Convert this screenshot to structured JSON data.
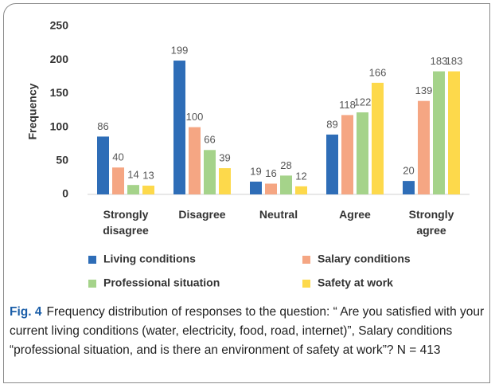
{
  "chart_data": {
    "type": "bar",
    "ylabel": "Frequency",
    "categories": [
      "Strongly disagree",
      "Disagree",
      "Neutral",
      "Agree",
      "Strongly agree"
    ],
    "series": [
      {
        "name": "Living conditions",
        "color": "#2e6db7",
        "values": [
          86,
          199,
          19,
          89,
          20
        ]
      },
      {
        "name": "Salary conditions",
        "color": "#f5a683",
        "values": [
          40,
          100,
          16,
          118,
          139
        ]
      },
      {
        "name": "Professional situation",
        "color": "#a5d38a",
        "values": [
          14,
          66,
          28,
          122,
          183
        ]
      },
      {
        "name": "Safety at work",
        "color": "#fdd94b",
        "values": [
          13,
          39,
          12,
          166,
          183
        ]
      }
    ],
    "ylim": [
      0,
      250
    ],
    "yticks": [
      0,
      50,
      100,
      150,
      200,
      250
    ],
    "grid": false,
    "legend": "bottom"
  },
  "caption": {
    "label": "Fig. 4",
    "text": "Frequency distribution of responses to the question: “ Are you satisfied with your current living conditions (water, electricity, food, road, internet)”, Salary conditions “professional situation, and is there an environment of safety at work”? N = 413"
  }
}
